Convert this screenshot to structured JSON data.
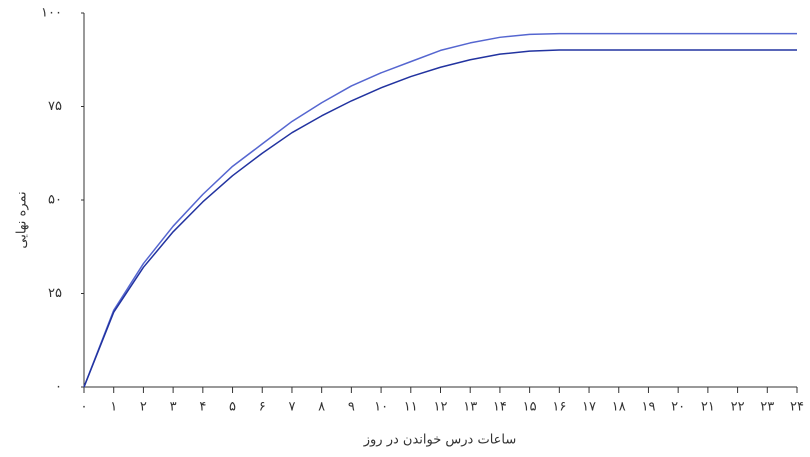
{
  "chart_data": {
    "type": "line",
    "x_label": "ساعات درس خواندن در روز",
    "y_label": "نمره نهایی",
    "x": [
      0,
      1,
      2,
      3,
      4,
      5,
      6,
      7,
      8,
      9,
      10,
      11,
      12,
      13,
      14,
      15,
      16,
      17,
      18,
      19,
      20,
      21,
      22,
      23,
      24
    ],
    "series": [
      {
        "color": "#5566d0",
        "values": [
          0,
          20.5,
          33,
          43,
          51.5,
          59,
          65,
          71,
          76,
          80.5,
          84,
          87,
          90,
          92,
          93.5,
          94.3,
          94.5,
          94.5,
          94.5,
          94.5,
          94.5,
          94.5,
          94.5,
          94.5,
          94.5
        ]
      },
      {
        "color": "#2233a0",
        "values": [
          0,
          20,
          32,
          41.5,
          49.5,
          56.5,
          62.5,
          68,
          72.5,
          76.5,
          80,
          83,
          85.5,
          87.5,
          89,
          89.8,
          90.1,
          90.1,
          90.1,
          90.1,
          90.1,
          90.1,
          90.1,
          90.1,
          90.1
        ]
      }
    ],
    "xlim": [
      0,
      24
    ],
    "ylim": [
      0,
      100
    ],
    "xticks": [
      {
        "value": 0,
        "label": "۰"
      },
      {
        "value": 1,
        "label": "۱"
      },
      {
        "value": 2,
        "label": "۲"
      },
      {
        "value": 3,
        "label": "۳"
      },
      {
        "value": 4,
        "label": "۴"
      },
      {
        "value": 5,
        "label": "۵"
      },
      {
        "value": 6,
        "label": "۶"
      },
      {
        "value": 7,
        "label": "۷"
      },
      {
        "value": 8,
        "label": "۸"
      },
      {
        "value": 9,
        "label": "۹"
      },
      {
        "value": 10,
        "label": "۱۰"
      },
      {
        "value": 11,
        "label": "۱۱"
      },
      {
        "value": 12,
        "label": "۱۲"
      },
      {
        "value": 13,
        "label": "۱۳"
      },
      {
        "value": 14,
        "label": "۱۴"
      },
      {
        "value": 15,
        "label": "۱۵"
      },
      {
        "value": 16,
        "label": "۱۶"
      },
      {
        "value": 17,
        "label": "۱۷"
      },
      {
        "value": 18,
        "label": "۱۸"
      },
      {
        "value": 19,
        "label": "۱۹"
      },
      {
        "value": 20,
        "label": "۲۰"
      },
      {
        "value": 21,
        "label": "۲۱"
      },
      {
        "value": 22,
        "label": "۲۲"
      },
      {
        "value": 23,
        "label": "۲۳"
      },
      {
        "value": 24,
        "label": "۲۴"
      }
    ],
    "yticks": [
      {
        "value": 0,
        "label": "۰"
      },
      {
        "value": 25,
        "label": "۲۵"
      },
      {
        "value": 50,
        "label": "۵۰"
      },
      {
        "value": 75,
        "label": "۷۵"
      },
      {
        "value": 100,
        "label": "۱۰۰"
      }
    ]
  }
}
